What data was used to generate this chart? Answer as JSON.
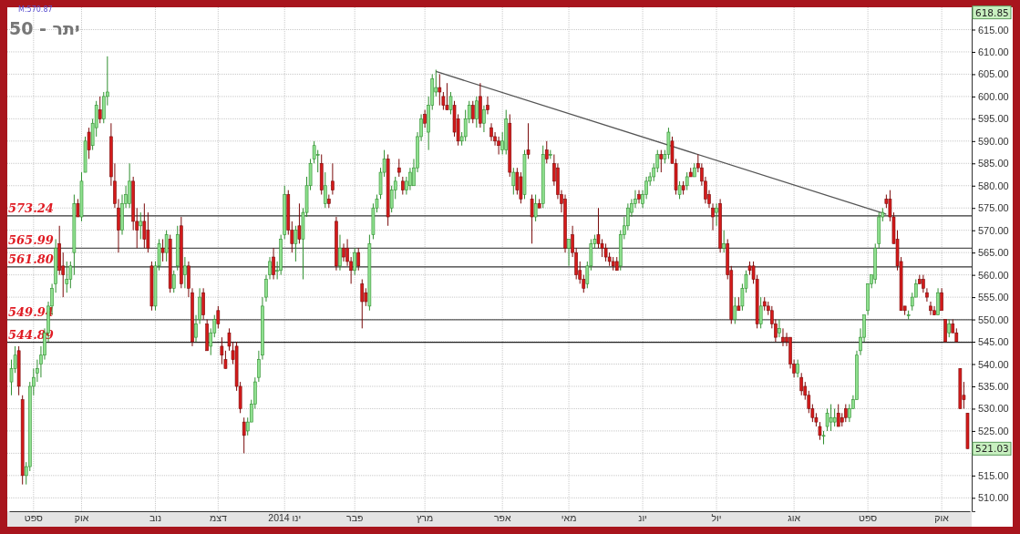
{
  "chart_data": {
    "type": "candlestick",
    "title": "יתר - 50",
    "categories": [
      null,
      null,
      null,
      null,
      null,
      null,
      "ספט",
      null,
      null,
      null,
      null,
      null,
      null,
      null,
      null,
      null,
      null,
      null,
      null,
      "אוק",
      null,
      null,
      null,
      null,
      null,
      null,
      null,
      null,
      null,
      null,
      null,
      null,
      null,
      null,
      null,
      null,
      null,
      null,
      null,
      "נוב",
      null,
      null,
      null,
      null,
      null,
      null,
      null,
      null,
      null,
      null,
      null,
      null,
      null,
      null,
      null,
      null,
      "דצמ",
      null,
      null,
      null,
      null,
      null,
      null,
      null,
      null,
      null,
      null,
      null,
      null,
      null,
      null,
      null,
      null,
      null,
      "2014 ינו",
      null,
      null,
      null,
      null,
      null,
      null,
      null,
      null,
      null,
      null,
      null,
      null,
      null,
      null,
      null,
      null,
      null,
      null,
      "פבר",
      null,
      null,
      null,
      null,
      null,
      null,
      null,
      null,
      null,
      null,
      null,
      null,
      null,
      null,
      null,
      null,
      null,
      null,
      "מרץ",
      null,
      null,
      null,
      null,
      null,
      null,
      null,
      null,
      null,
      null,
      null,
      null,
      null,
      null,
      null,
      null,
      null,
      null,
      null,
      null,
      "אפר",
      null,
      null,
      null,
      null,
      null,
      null,
      null,
      null,
      null,
      null,
      null,
      null,
      null,
      null,
      null,
      null,
      null,
      "מאי",
      null,
      null,
      null,
      null,
      null,
      null,
      null,
      null,
      null,
      null,
      null,
      null,
      null,
      null,
      null,
      null,
      null,
      null,
      null,
      "יונ",
      null,
      null,
      null,
      null,
      null,
      null,
      null,
      null,
      null,
      null,
      null,
      null,
      null,
      null,
      null,
      null,
      null,
      null,
      null,
      "יול",
      null,
      null,
      null,
      null,
      null,
      null,
      null,
      null,
      null,
      null,
      null,
      null,
      null,
      null,
      null,
      null,
      null,
      null,
      null,
      null,
      "אוג",
      null,
      null,
      null,
      null,
      null,
      null,
      null,
      null,
      null,
      null,
      null,
      null,
      null,
      null,
      null,
      null,
      null,
      null,
      null,
      "ספט",
      null,
      null,
      null,
      null,
      null,
      null,
      null,
      null,
      null,
      null,
      null,
      null,
      null,
      null,
      null,
      null,
      null,
      null,
      null,
      "אוק",
      null,
      null,
      null,
      null,
      null,
      null,
      null
    ],
    "ohlc": [
      [
        536,
        541,
        533,
        539
      ],
      [
        539,
        544,
        538,
        542
      ],
      [
        543,
        544,
        533,
        535
      ],
      [
        532,
        533,
        513,
        515
      ],
      [
        515,
        518,
        513,
        517
      ],
      [
        517,
        536,
        516,
        535
      ],
      [
        535,
        539,
        533,
        537
      ],
      [
        538,
        541,
        536,
        539
      ],
      [
        540,
        544,
        537,
        542
      ],
      [
        542,
        548,
        541,
        547
      ],
      [
        547,
        554,
        545,
        553
      ],
      [
        553,
        558,
        551,
        557
      ],
      [
        558,
        568,
        556,
        566
      ],
      [
        567,
        571,
        560,
        561
      ],
      [
        562,
        565,
        555,
        560
      ],
      [
        558,
        563,
        556,
        559
      ],
      [
        559,
        563,
        557,
        562
      ],
      [
        565,
        578,
        560,
        576
      ],
      [
        576,
        577,
        573,
        573
      ],
      [
        573,
        583,
        572,
        581
      ],
      [
        583,
        591,
        583,
        590
      ],
      [
        592,
        593,
        586,
        588
      ],
      [
        589,
        595,
        588,
        594
      ],
      [
        593,
        599,
        591,
        598
      ],
      [
        597,
        600,
        594,
        595
      ],
      [
        595,
        601,
        594,
        600
      ],
      [
        600,
        609,
        598,
        601
      ],
      [
        591,
        594,
        580,
        582
      ],
      [
        581,
        585,
        575,
        576
      ],
      [
        575,
        577,
        565,
        570
      ],
      [
        570,
        578,
        569,
        576
      ],
      [
        576,
        580,
        575,
        578
      ],
      [
        576,
        585,
        575,
        581
      ],
      [
        581,
        582,
        570,
        572
      ],
      [
        572,
        575,
        566,
        570
      ],
      [
        571,
        574,
        568,
        572
      ],
      [
        572,
        576,
        566,
        568
      ],
      [
        570,
        574,
        565,
        566
      ],
      [
        562,
        563,
        552,
        553
      ],
      [
        553,
        563,
        552,
        562
      ],
      [
        562,
        568,
        561,
        567
      ],
      [
        566,
        568,
        563,
        565
      ],
      [
        565,
        570,
        563,
        569
      ],
      [
        568,
        569,
        556,
        557
      ],
      [
        557,
        561,
        556,
        560
      ],
      [
        562,
        571,
        561,
        569
      ],
      [
        571,
        573,
        557,
        558
      ],
      [
        560,
        564,
        557,
        562
      ],
      [
        562,
        563,
        555,
        557
      ],
      [
        556,
        557,
        544,
        545
      ],
      [
        546,
        551,
        545,
        549
      ],
      [
        550,
        557,
        549,
        555
      ],
      [
        556,
        557,
        550,
        551
      ],
      [
        549,
        550,
        543,
        543
      ],
      [
        544,
        548,
        542,
        547
      ],
      [
        547,
        551,
        546,
        550
      ],
      [
        552,
        553,
        548,
        549
      ],
      [
        544,
        546,
        540,
        542
      ],
      [
        541,
        543,
        539,
        539
      ],
      [
        547,
        548,
        543,
        544
      ],
      [
        543,
        545,
        540,
        541
      ],
      [
        544,
        545,
        534,
        535
      ],
      [
        535,
        536,
        529,
        530
      ],
      [
        527,
        528,
        520,
        524
      ],
      [
        525,
        528,
        524,
        527
      ],
      [
        527,
        532,
        527,
        531
      ],
      [
        531,
        537,
        530,
        536
      ],
      [
        537,
        543,
        536,
        541
      ],
      [
        542,
        555,
        541,
        553
      ],
      [
        555,
        560,
        554,
        559
      ],
      [
        560,
        564,
        559,
        563
      ],
      [
        564,
        566,
        559,
        560
      ],
      [
        561,
        563,
        559,
        561
      ],
      [
        561,
        569,
        560,
        568
      ],
      [
        569,
        580,
        568,
        578
      ],
      [
        578,
        579,
        569,
        570
      ],
      [
        570,
        572,
        565,
        567
      ],
      [
        567,
        571,
        563,
        570
      ],
      [
        571,
        576,
        567,
        568
      ],
      [
        568,
        575,
        559,
        574
      ],
      [
        574,
        582,
        573,
        580
      ],
      [
        580,
        586,
        579,
        585
      ],
      [
        586,
        590,
        585,
        589
      ],
      [
        587,
        588,
        583,
        587
      ],
      [
        585,
        587,
        578,
        579
      ],
      [
        576,
        583,
        575,
        580
      ],
      [
        577,
        578,
        575,
        576
      ],
      [
        581,
        585,
        578,
        579
      ],
      [
        572,
        573,
        561,
        562
      ],
      [
        562,
        569,
        561,
        566
      ],
      [
        566,
        567,
        563,
        564
      ],
      [
        566,
        568,
        562,
        563
      ],
      [
        563,
        564,
        558,
        561
      ],
      [
        561,
        566,
        560,
        565
      ],
      [
        565,
        566,
        561,
        562
      ],
      [
        558,
        559,
        548,
        554
      ],
      [
        556,
        557,
        553,
        554
      ],
      [
        553,
        569,
        552,
        567
      ],
      [
        569,
        576,
        568,
        575
      ],
      [
        575,
        578,
        574,
        577
      ],
      [
        578,
        584,
        577,
        583
      ],
      [
        583,
        588,
        582,
        586
      ],
      [
        586,
        587,
        571,
        573
      ],
      [
        575,
        580,
        574,
        579
      ],
      [
        579,
        582,
        577,
        581
      ],
      [
        584,
        586,
        582,
        583
      ],
      [
        581,
        582,
        578,
        579
      ],
      [
        579,
        582,
        578,
        581
      ],
      [
        580,
        584,
        579,
        583
      ],
      [
        580,
        586,
        580,
        584
      ],
      [
        584,
        592,
        583,
        591
      ],
      [
        591,
        596,
        590,
        595
      ],
      [
        596,
        597,
        593,
        594
      ],
      [
        592,
        600,
        588,
        598
      ],
      [
        598,
        605,
        597,
        604
      ],
      [
        601,
        606,
        600,
        602
      ],
      [
        602,
        605,
        598,
        601
      ],
      [
        600,
        601,
        597,
        598
      ],
      [
        598,
        603,
        597,
        597
      ],
      [
        597,
        601,
        596,
        600
      ],
      [
        598,
        599,
        591,
        592
      ],
      [
        595,
        596,
        589,
        590
      ],
      [
        590,
        592,
        589,
        591
      ],
      [
        591,
        597,
        590,
        595
      ],
      [
        595,
        599,
        594,
        598
      ],
      [
        598,
        599,
        594,
        595
      ],
      [
        595,
        600,
        593,
        599
      ],
      [
        600,
        603,
        593,
        594
      ],
      [
        594,
        598,
        592,
        597
      ],
      [
        598,
        600,
        596,
        597
      ],
      [
        593,
        594,
        590,
        591
      ],
      [
        591,
        592,
        589,
        590
      ],
      [
        590,
        591,
        587,
        589
      ],
      [
        588,
        592,
        587,
        590
      ],
      [
        588,
        597,
        587,
        595
      ],
      [
        594,
        596,
        582,
        583
      ],
      [
        580,
        584,
        578,
        583
      ],
      [
        583,
        584,
        578,
        579
      ],
      [
        582,
        583,
        576,
        577
      ],
      [
        578,
        588,
        577,
        587
      ],
      [
        588,
        594,
        586,
        587
      ],
      [
        577,
        578,
        567,
        573
      ],
      [
        573,
        578,
        572,
        576
      ],
      [
        576,
        577,
        575,
        575
      ],
      [
        576,
        589,
        575,
        587
      ],
      [
        588,
        590,
        585,
        586
      ],
      [
        587,
        588,
        586,
        587
      ],
      [
        585,
        587,
        580,
        581
      ],
      [
        584,
        585,
        577,
        578
      ],
      [
        578,
        579,
        574,
        576
      ],
      [
        577,
        578,
        565,
        566
      ],
      [
        566,
        568,
        562,
        568
      ],
      [
        569,
        571,
        564,
        565
      ],
      [
        565,
        566,
        559,
        560
      ],
      [
        561,
        563,
        558,
        559
      ],
      [
        559,
        560,
        556,
        557
      ],
      [
        558,
        563,
        557,
        562
      ],
      [
        562,
        568,
        561,
        567
      ],
      [
        567,
        569,
        566,
        568
      ],
      [
        569,
        575,
        566,
        567
      ],
      [
        567,
        568,
        564,
        566
      ],
      [
        566,
        567,
        563,
        564
      ],
      [
        564,
        565,
        562,
        563
      ],
      [
        563,
        564,
        561,
        562
      ],
      [
        563,
        564,
        561,
        561
      ],
      [
        562,
        570,
        561,
        569
      ],
      [
        569,
        573,
        568,
        571
      ],
      [
        571,
        576,
        570,
        575
      ],
      [
        574,
        577,
        573,
        576
      ],
      [
        576,
        579,
        575,
        577
      ],
      [
        578,
        579,
        576,
        577
      ],
      [
        576,
        579,
        575,
        578
      ],
      [
        578,
        582,
        577,
        581
      ],
      [
        581,
        583,
        580,
        582
      ],
      [
        582,
        585,
        581,
        584
      ],
      [
        584,
        588,
        583,
        587
      ],
      [
        587,
        588,
        583,
        586
      ],
      [
        586,
        588,
        585,
        587
      ],
      [
        587,
        593,
        586,
        592
      ],
      [
        590,
        591,
        585,
        585
      ],
      [
        585,
        586,
        578,
        579
      ],
      [
        578,
        581,
        577,
        580
      ],
      [
        580,
        581,
        578,
        579
      ],
      [
        580,
        583,
        579,
        582
      ],
      [
        583,
        584,
        582,
        582
      ],
      [
        582,
        585,
        582,
        584
      ],
      [
        585,
        587,
        583,
        584
      ],
      [
        584,
        585,
        580,
        581
      ],
      [
        581,
        582,
        576,
        577
      ],
      [
        578,
        579,
        575,
        576
      ],
      [
        575,
        576,
        570,
        573
      ],
      [
        574,
        576,
        571,
        575
      ],
      [
        576,
        577,
        565,
        566
      ],
      [
        566,
        570,
        565,
        567
      ],
      [
        567,
        568,
        559,
        560
      ],
      [
        561,
        562,
        549,
        550
      ],
      [
        550,
        555,
        549,
        553
      ],
      [
        553,
        555,
        552,
        552
      ],
      [
        553,
        558,
        552,
        557
      ],
      [
        557,
        561,
        556,
        560
      ],
      [
        562,
        563,
        560,
        561
      ],
      [
        562,
        563,
        558,
        559
      ],
      [
        559,
        560,
        548,
        549
      ],
      [
        549,
        555,
        548,
        553
      ],
      [
        554,
        555,
        552,
        553
      ],
      [
        553,
        554,
        551,
        552
      ],
      [
        552,
        553,
        548,
        549
      ],
      [
        549,
        550,
        545,
        546
      ],
      [
        547,
        550,
        546,
        548
      ],
      [
        546,
        548,
        544,
        545
      ],
      [
        546,
        547,
        544,
        545
      ],
      [
        546,
        546,
        539,
        540
      ],
      [
        540,
        541,
        537,
        538
      ],
      [
        538,
        541,
        537,
        540
      ],
      [
        537,
        538,
        533,
        534
      ],
      [
        535,
        536,
        532,
        533
      ],
      [
        533,
        534,
        529,
        530
      ],
      [
        530,
        531,
        527,
        528
      ],
      [
        528,
        529,
        526,
        527
      ],
      [
        526,
        527,
        523,
        524
      ],
      [
        524,
        525,
        522,
        524
      ],
      [
        526,
        530,
        525,
        529
      ],
      [
        527,
        531,
        525,
        528
      ],
      [
        527,
        530,
        526,
        528
      ],
      [
        529,
        531,
        526,
        526
      ],
      [
        528,
        529,
        526,
        527
      ],
      [
        530,
        531,
        527,
        528
      ],
      [
        528,
        531,
        527,
        530
      ],
      [
        530,
        533,
        530,
        532
      ],
      [
        532,
        543,
        532,
        542
      ],
      [
        543,
        548,
        542,
        546
      ],
      [
        546,
        551,
        545,
        551
      ],
      [
        552,
        558,
        551,
        558
      ],
      [
        558,
        560,
        557,
        560
      ],
      [
        559,
        567,
        558,
        566
      ],
      [
        567,
        574,
        566,
        573
      ],
      [
        573,
        575,
        572,
        574
      ],
      [
        577,
        578,
        575,
        576
      ],
      [
        577,
        579,
        572,
        573
      ],
      [
        573,
        574,
        567,
        567
      ],
      [
        568,
        570,
        561,
        562
      ],
      [
        563,
        564,
        552,
        552
      ],
      [
        553,
        553,
        551,
        552
      ],
      [
        551,
        552,
        550,
        551
      ],
      [
        553,
        556,
        552,
        555
      ],
      [
        555,
        559,
        555,
        558
      ],
      [
        559,
        560,
        558,
        558
      ],
      [
        559,
        560,
        556,
        557
      ],
      [
        556,
        557,
        554,
        555
      ],
      [
        553,
        554,
        551,
        552
      ],
      [
        552,
        553,
        551,
        551
      ],
      [
        551,
        557,
        551,
        556
      ],
      [
        556,
        557,
        552,
        552
      ],
      [
        550,
        550,
        545,
        545
      ],
      [
        547,
        550,
        546,
        549
      ],
      [
        549,
        550,
        547,
        547
      ],
      [
        547,
        548,
        545,
        545
      ],
      [
        539,
        539,
        530,
        530
      ],
      [
        533,
        536,
        530,
        532
      ],
      [
        529,
        529,
        521.03,
        521.03
      ]
    ],
    "series": [
      {
        "type": "line",
        "color": "#555555",
        "values": [
          null,
          null,
          null,
          null,
          null,
          null,
          null,
          null,
          null,
          null,
          null,
          null,
          null,
          null,
          null,
          null,
          null,
          null,
          null,
          null,
          null,
          null,
          null,
          null,
          null,
          null,
          null,
          null,
          null,
          null,
          null,
          null,
          null,
          null,
          null,
          null,
          null,
          null,
          null,
          null,
          null,
          null,
          null,
          null,
          null,
          null,
          null,
          null,
          null,
          null,
          null,
          null,
          null,
          null,
          null,
          null,
          null,
          null,
          null,
          null,
          null,
          null,
          null,
          null,
          null,
          null,
          null,
          null,
          null,
          null,
          null,
          null,
          null,
          null,
          null,
          null,
          null,
          null,
          null,
          null,
          null,
          null,
          null,
          null,
          null,
          null,
          null,
          null,
          null,
          null,
          null,
          null,
          null,
          null,
          null,
          null,
          null,
          null,
          null,
          null,
          null,
          null,
          null,
          null,
          null,
          null,
          null,
          null,
          null,
          null,
          null,
          null,
          null,
          null,
          null,
          605.6,
          null,
          null,
          null,
          null,
          null,
          null,
          null,
          null,
          null,
          null,
          null,
          null,
          null,
          null,
          null,
          null,
          null,
          null,
          null,
          null,
          null,
          null,
          null,
          null,
          null,
          null,
          null,
          null,
          null,
          null,
          null,
          null,
          null,
          null,
          null,
          null,
          null,
          null,
          null,
          null,
          null,
          null,
          null,
          null,
          null,
          null,
          null,
          null,
          null,
          null,
          null,
          null,
          null,
          null,
          null,
          null,
          null,
          null,
          null,
          null,
          null,
          null,
          null,
          null,
          null,
          null,
          null,
          null,
          null,
          null,
          null,
          null,
          null,
          null,
          null,
          null,
          null,
          null,
          null,
          null,
          null,
          null,
          null,
          null,
          null,
          null,
          null,
          null,
          null,
          null,
          null,
          null,
          null,
          null,
          null,
          null,
          null,
          null,
          null,
          null,
          null,
          null,
          null,
          null,
          null,
          null,
          null,
          null,
          null,
          null,
          null,
          null,
          null,
          null,
          null,
          null,
          null,
          null,
          null,
          null,
          null,
          573.6,
          null,
          null,
          null,
          null,
          null,
          null,
          null,
          null,
          null,
          null,
          null,
          null,
          null,
          null,
          null,
          null,
          null,
          null,
          null,
          null,
          null,
          null
        ]
      }
    ],
    "ylim": [
      507,
      620
    ],
    "yticks": [
      {
        "value": 510,
        "label": "510.00"
      },
      {
        "value": 515,
        "label": "515.00"
      },
      {
        "value": 520,
        "label": null
      },
      {
        "value": 525,
        "label": "525.00"
      },
      {
        "value": 530,
        "label": "530.00"
      },
      {
        "value": 535,
        "label": "535.00"
      },
      {
        "value": 540,
        "label": "540.00"
      },
      {
        "value": 545,
        "label": "545.00"
      },
      {
        "value": 550,
        "label": "550.00"
      },
      {
        "value": 555,
        "label": "555.00"
      },
      {
        "value": 560,
        "label": "560.00"
      },
      {
        "value": 565,
        "label": "565.00"
      },
      {
        "value": 570,
        "label": "570.00"
      },
      {
        "value": 575,
        "label": "575.00"
      },
      {
        "value": 580,
        "label": "580.00"
      },
      {
        "value": 585,
        "label": "585.00"
      },
      {
        "value": 590,
        "label": "590.00"
      },
      {
        "value": 595,
        "label": "595.00"
      },
      {
        "value": 600,
        "label": "600.00"
      },
      {
        "value": 605,
        "label": "605.00"
      },
      {
        "value": 610,
        "label": "610.00"
      },
      {
        "value": 615,
        "label": "615.00"
      }
    ],
    "ref_lines": [
      {
        "axis": "y",
        "value": 573.24,
        "label": "573.24",
        "color": "#333333"
      },
      {
        "axis": "y",
        "value": 565.99,
        "label": "565.99",
        "color": "#555555"
      },
      {
        "axis": "y",
        "value": 561.8,
        "label": "561.80",
        "color": "#333333"
      },
      {
        "axis": "y",
        "value": 549.94,
        "label": "549.94",
        "color": "#555555"
      },
      {
        "axis": "y",
        "value": 544.89,
        "label": "544.89",
        "color": "#222222"
      }
    ],
    "annotations": [
      "M:570.87",
      {
        "text": "618.85",
        "y": 618.85
      },
      {
        "text": "521.03",
        "y": 521.03
      }
    ],
    "grid": true
  }
}
